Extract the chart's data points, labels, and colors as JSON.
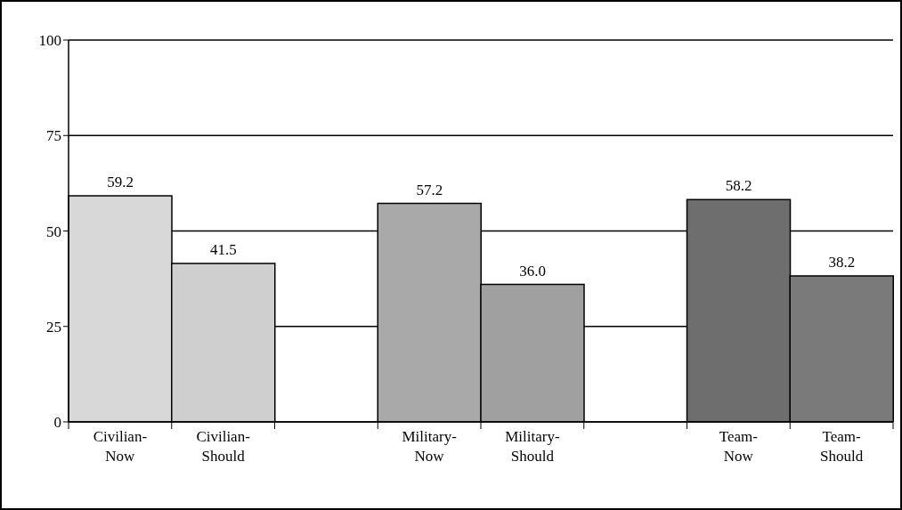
{
  "chart_data": {
    "type": "bar",
    "categories": [
      "Civilian-Now",
      "Civilian-Should",
      null,
      "Military-Now",
      "Military-Should",
      null,
      "Team-Now",
      "Team-Should"
    ],
    "values": [
      59.2,
      41.5,
      null,
      57.2,
      36.0,
      null,
      58.2,
      38.2
    ],
    "value_labels": [
      "59.2",
      "41.5",
      null,
      "57.2",
      "36.0",
      null,
      "58.2",
      "38.2"
    ],
    "colors": [
      "#d8d8d8",
      "#cfcfcf",
      null,
      "#a9a9a9",
      "#a0a0a0",
      null,
      "#6e6e6e",
      "#7a7a7a"
    ],
    "ylim": [
      0,
      100
    ],
    "yticks": [
      0,
      25,
      50,
      75,
      100
    ],
    "grid": "y"
  }
}
